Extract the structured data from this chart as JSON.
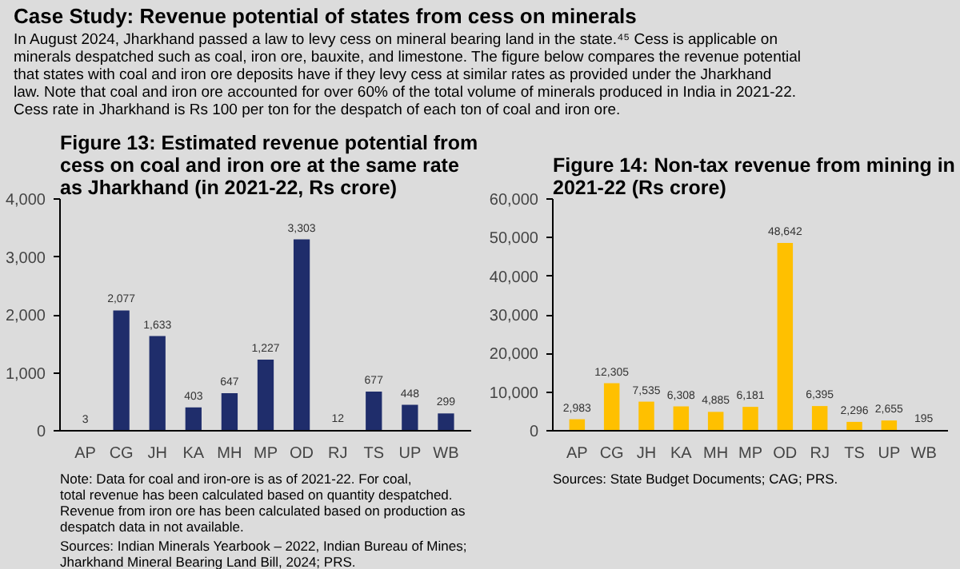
{
  "chart_data": [
    {
      "type": "other",
      "title": "Case Study: Revenue potential of states from cess on minerals",
      "annotations": [
        "In August 2024, Jharkhand passed a law to levy cess on mineral bearing land in the state.⁴⁵  Cess is applicable on minerals despatched such as coal, iron ore, bauxite, and limestone.  The figure below compares the revenue potential that states with coal and iron ore deposits have if they levy cess at similar rates as provided under the Jharkhand law.  Note that coal and iron ore accounted for over 60% of the total volume of minerals produced in India in 2021-22.  Cess rate in Jharkhand is Rs 100 per ton for the despatch of each ton of coal and iron ore."
      ]
    },
    {
      "type": "bar",
      "title": "Figure 13: Estimated revenue potential from cess on coal and iron ore at the same rate as Jharkhand (in 2021-22, Rs crore)",
      "categories": [
        "AP",
        "CG",
        "JH",
        "KA",
        "MH",
        "MP",
        "OD",
        "RJ",
        "TS",
        "UP",
        "WB"
      ],
      "values": [
        3,
        2077,
        1633,
        403,
        647,
        1227,
        3303,
        12,
        677,
        448,
        299
      ],
      "value_labels": [
        "3",
        "2,077",
        "1,633",
        "403",
        "647",
        "1,227",
        "3,303",
        "12",
        "677",
        "448",
        "299"
      ],
      "color": "#1f2d6b",
      "ylim": [
        0,
        4000
      ],
      "yticks": [
        0,
        {
          "value": 1000,
          "label": "1,000"
        },
        {
          "value": 2000,
          "label": "2,000"
        },
        {
          "value": 3000,
          "label": "3,000"
        },
        {
          "value": 4000,
          "label": "4,000"
        }
      ],
      "annotations": [
        "Note: Data for coal and iron-ore is as of 2021-22.  For coal, total revenue has been calculated based on quantity despatched.  Revenue from iron ore has been calculated based on production as despatch data in not available.",
        "Sources: Indian Minerals Yearbook – 2022, Indian Bureau of Mines; Jharkhand Mineral Bearing Land Bill, 2024; PRS."
      ]
    },
    {
      "type": "bar",
      "title": "Figure 14: Non-tax revenue from mining in 2021-22 (Rs crore)",
      "categories": [
        "AP",
        "CG",
        "JH",
        "KA",
        "MH",
        "MP",
        "OD",
        "RJ",
        "TS",
        "UP",
        "WB"
      ],
      "values": [
        2983,
        12305,
        7535,
        6308,
        4885,
        6181,
        48642,
        6395,
        2296,
        2655,
        195
      ],
      "value_labels": [
        "2,983",
        "12,305",
        "7,535",
        "6,308",
        "4,885",
        "6,181",
        "48,642",
        "6,395",
        "2,296",
        "2,655",
        "195"
      ],
      "color": "#ffc000",
      "ylim": [
        0,
        60000
      ],
      "yticks": [
        0,
        {
          "value": 10000,
          "label": "10,000"
        },
        {
          "value": 20000,
          "label": "20,000"
        },
        {
          "value": 30000,
          "label": "30,000"
        },
        {
          "value": 40000,
          "label": "40,000"
        },
        {
          "value": 50000,
          "label": "50,000"
        },
        {
          "value": 60000,
          "label": "60,000"
        }
      ],
      "annotations": [
        "Sources: State Budget Documents; CAG; PRS."
      ]
    }
  ]
}
